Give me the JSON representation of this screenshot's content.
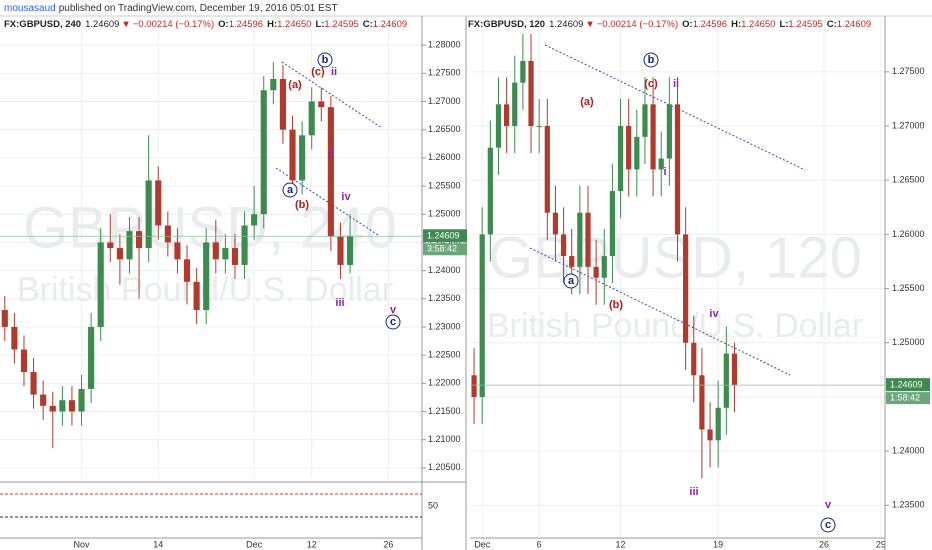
{
  "header": {
    "author": "mousasaud",
    "published": "published on TradingView.com, December 19, 2016 05:01 EST"
  },
  "chart_data": [
    {
      "type": "candlestick",
      "symbol": "FX:GBPUSD, 240",
      "last": 1.24609,
      "arrow": "▼",
      "change": "−0.00214 (−0.17%)",
      "ohlc_labels": [
        {
          "label": "O:",
          "value": 1.24596
        },
        {
          "label": "H:",
          "value": 1.2465
        },
        {
          "label": "L:",
          "value": 1.24595
        },
        {
          "label": "C:",
          "value": 1.24609
        }
      ],
      "ohlc_value_labels": [
        "1.24596",
        "1.24650",
        "1.24595",
        "1.24609"
      ],
      "last_label": "1.24609",
      "countdown": "3:58:42",
      "watermark": [
        "GBPUSD, 240",
        "British Pound/U.S. Dollar"
      ],
      "up_color": "#3d8b4f",
      "down_color": "#b03a2e",
      "categories": [
        null,
        null,
        null,
        null,
        null,
        null,
        null,
        null,
        "Nov",
        null,
        null,
        null,
        null,
        null,
        null,
        null,
        "14",
        null,
        null,
        null,
        null,
        null,
        null,
        null,
        null,
        null,
        "Dec",
        null,
        null,
        null,
        null,
        null,
        "12",
        null,
        null,
        null,
        null,
        null,
        null,
        null,
        "26",
        null,
        null,
        null
      ],
      "open": [
        1.233,
        1.23,
        1.226,
        1.222,
        1.218,
        1.216,
        1.215,
        1.217,
        1.215,
        1.219,
        1.23,
        1.245,
        1.244,
        1.242,
        1.247,
        1.244,
        1.256,
        1.248,
        1.245,
        1.242,
        1.238,
        1.233,
        1.245,
        1.242,
        1.244,
        1.241,
        1.248,
        1.25,
        1.272,
        1.274,
        1.265,
        1.256,
        1.264,
        1.27,
        1.269,
        1.246,
        1.241,
        null,
        null,
        null,
        null,
        null,
        null,
        null
      ],
      "high": [
        1.2355,
        1.2325,
        1.2285,
        1.2245,
        1.2205,
        1.2185,
        1.2195,
        1.2195,
        1.2215,
        1.2325,
        1.2475,
        1.25,
        1.2465,
        1.2495,
        1.2495,
        1.264,
        1.2585,
        1.2505,
        1.2475,
        1.2445,
        1.2405,
        1.2475,
        1.249,
        1.2465,
        1.2465,
        1.2505,
        1.255,
        1.2745,
        1.277,
        1.2765,
        1.2675,
        1.2665,
        1.2725,
        1.2725,
        1.271,
        1.2485,
        1.25,
        null,
        null,
        null,
        null,
        null,
        null,
        null
      ],
      "low": [
        1.2275,
        1.2235,
        1.2195,
        1.2155,
        1.2135,
        1.2085,
        1.2125,
        1.2125,
        1.2125,
        1.2165,
        1.2275,
        1.2415,
        1.2375,
        1.2395,
        1.235,
        1.2415,
        1.2455,
        1.2425,
        1.2395,
        1.234,
        1.2305,
        1.2305,
        1.2395,
        1.2395,
        1.2385,
        1.2385,
        1.2455,
        1.2475,
        1.2695,
        1.2625,
        1.2535,
        1.2535,
        1.2615,
        1.2665,
        1.2435,
        1.2385,
        1.2395,
        null,
        null,
        null,
        null,
        null,
        null,
        null
      ],
      "close": [
        1.23,
        1.226,
        1.222,
        1.218,
        1.216,
        1.215,
        1.217,
        1.215,
        1.219,
        1.23,
        1.245,
        1.244,
        1.242,
        1.247,
        1.244,
        1.256,
        1.248,
        1.245,
        1.242,
        1.238,
        1.233,
        1.245,
        1.242,
        1.244,
        1.241,
        1.248,
        1.25,
        1.272,
        1.274,
        1.265,
        1.256,
        1.264,
        1.27,
        1.269,
        1.246,
        1.241,
        1.24609,
        null,
        null,
        null,
        null,
        null,
        null,
        null
      ],
      "ylim": [
        1.2032,
        1.2818
      ],
      "yticks": [
        {
          "value": 1.205,
          "label": "1.20500"
        },
        {
          "value": 1.21,
          "label": "1.21000"
        },
        {
          "value": 1.215,
          "label": "1.21500"
        },
        {
          "value": 1.22,
          "label": "1.22000"
        },
        {
          "value": 1.225,
          "label": "1.22500"
        },
        {
          "value": 1.23,
          "label": "1.23000"
        },
        {
          "value": 1.235,
          "label": "1.23500"
        },
        {
          "value": 1.24,
          "label": "1.24000"
        },
        {
          "value": 1.245,
          "label": "1.24500"
        },
        {
          "value": 1.25,
          "label": "1.25000"
        },
        {
          "value": 1.255,
          "label": "1.25500"
        },
        {
          "value": 1.26,
          "label": "1.26000"
        },
        {
          "value": 1.265,
          "label": "1.26500"
        },
        {
          "value": 1.27,
          "label": "1.27000"
        },
        {
          "value": 1.275,
          "label": "1.27500"
        },
        {
          "value": 1.28,
          "label": "1.28000"
        }
      ],
      "indicator_tick": 50,
      "grid": true,
      "annotations": [
        {
          "text": "(a)",
          "color": "#b71c1c",
          "circled": false
        },
        {
          "text": "(c)",
          "color": "#b71c1c",
          "circled": false
        },
        {
          "text": "b",
          "color": "#1a237e",
          "circled": true
        },
        {
          "text": "ii",
          "color": "#8e24aa",
          "circled": false
        },
        {
          "text": "i",
          "color": "#8e24aa",
          "circled": false
        },
        {
          "text": "a",
          "color": "#1a237e",
          "circled": true
        },
        {
          "text": "(b)",
          "color": "#b71c1c",
          "circled": false
        },
        {
          "text": "iv",
          "color": "#8e24aa",
          "circled": false
        },
        {
          "text": "iii",
          "color": "#8e24aa",
          "circled": false
        },
        {
          "text": "v",
          "color": "#8e24aa",
          "circled": false
        },
        {
          "text": "c",
          "color": "#1a237e",
          "circled": true
        }
      ]
    },
    {
      "type": "candlestick",
      "symbol": "FX:GBPUSD, 120",
      "last": 1.24609,
      "arrow": "▼",
      "change": "−0.00214 (−0.17%)",
      "ohlc_labels": [
        {
          "label": "O:",
          "value": 1.24596
        },
        {
          "label": "H:",
          "value": 1.2465
        },
        {
          "label": "L:",
          "value": 1.24595
        },
        {
          "label": "C:",
          "value": 1.24609
        }
      ],
      "ohlc_value_labels": [
        "1.24596",
        "1.24650",
        "1.24595",
        "1.24609"
      ],
      "last_label": "1.24609",
      "countdown": "1:58:42",
      "watermark": [
        "GBPUSD, 120",
        "British Pound/U.S. Dollar"
      ],
      "up_color": "#3d8b4f",
      "down_color": "#b03a2e",
      "categories": [
        null,
        "Dec",
        null,
        null,
        null,
        null,
        null,
        null,
        "6",
        null,
        null,
        null,
        null,
        null,
        null,
        null,
        null,
        null,
        "12",
        null,
        null,
        null,
        null,
        null,
        null,
        null,
        null,
        null,
        null,
        null,
        "19",
        null,
        null,
        null,
        null,
        null,
        null,
        null,
        null,
        null,
        null,
        null,
        null,
        "26",
        null,
        null,
        null,
        null,
        null,
        null,
        "29"
      ],
      "open": [
        1.247,
        1.245,
        1.26,
        1.268,
        1.272,
        1.27,
        1.274,
        1.276,
        1.27,
        1.27,
        1.262,
        1.26,
        1.258,
        1.257,
        1.262,
        1.257,
        1.256,
        1.258,
        1.264,
        1.27,
        1.266,
        1.269,
        1.272,
        1.266,
        1.267,
        1.272,
        1.26,
        1.25,
        1.247,
        1.242,
        1.241,
        1.244,
        1.249,
        null,
        null,
        null,
        null,
        null,
        null,
        null,
        null,
        null,
        null,
        null,
        null,
        null,
        null,
        null,
        null,
        null,
        null
      ],
      "high": [
        1.2495,
        1.2625,
        1.2705,
        1.2745,
        1.2745,
        1.2765,
        1.2785,
        1.2785,
        1.2725,
        1.2725,
        1.2645,
        1.2625,
        1.2605,
        1.2645,
        1.2645,
        1.2595,
        1.2605,
        1.2665,
        1.2725,
        1.2725,
        1.2715,
        1.2745,
        1.2745,
        1.2695,
        1.2745,
        1.2745,
        1.2625,
        1.2525,
        1.2495,
        1.2445,
        1.2465,
        1.2515,
        1.25,
        null,
        null,
        null,
        null,
        null,
        null,
        null,
        null,
        null,
        null,
        null,
        null,
        null,
        null,
        null,
        null,
        null,
        null
      ],
      "low": [
        1.2425,
        1.2425,
        1.2575,
        1.2655,
        1.2675,
        1.2675,
        1.2715,
        1.2675,
        1.2675,
        1.2595,
        1.2575,
        1.2555,
        1.2545,
        1.2545,
        1.2545,
        1.2535,
        1.2535,
        1.2555,
        1.2615,
        1.2635,
        1.2635,
        1.2665,
        1.2635,
        1.2635,
        1.2645,
        1.2575,
        1.2475,
        1.2445,
        1.2375,
        1.2385,
        1.2385,
        1.2415,
        1.2436,
        null,
        null,
        null,
        null,
        null,
        null,
        null,
        null,
        null,
        null,
        null,
        null,
        null,
        null,
        null,
        null,
        null,
        null
      ],
      "close": [
        1.245,
        1.26,
        1.268,
        1.272,
        1.27,
        1.274,
        1.276,
        1.27,
        1.27,
        1.262,
        1.26,
        1.258,
        1.257,
        1.262,
        1.257,
        1.256,
        1.258,
        1.264,
        1.27,
        1.266,
        1.269,
        1.272,
        1.266,
        1.267,
        1.272,
        1.26,
        1.25,
        1.247,
        1.242,
        1.241,
        1.244,
        1.249,
        1.24609,
        null,
        null,
        null,
        null,
        null,
        null,
        null,
        null,
        null,
        null,
        null,
        null,
        null,
        null,
        null,
        null,
        null,
        null
      ],
      "ylim": [
        1.2318,
        1.2784
      ],
      "yticks": [
        {
          "value": 1.235,
          "label": "1.23500"
        },
        {
          "value": 1.24,
          "label": "1.24000"
        },
        {
          "value": 1.245,
          "label": "1.24500"
        },
        {
          "value": 1.25,
          "label": "1.25000"
        },
        {
          "value": 1.255,
          "label": "1.25500"
        },
        {
          "value": 1.26,
          "label": "1.26000"
        },
        {
          "value": 1.265,
          "label": "1.26500"
        },
        {
          "value": 1.27,
          "label": "1.27000"
        },
        {
          "value": 1.275,
          "label": "1.27500"
        }
      ],
      "grid": true,
      "annotations": [
        {
          "text": "b",
          "color": "#1a237e",
          "circled": true
        },
        {
          "text": "(c)",
          "color": "#b71c1c",
          "circled": false
        },
        {
          "text": "ii",
          "color": "#8e24aa",
          "circled": false
        },
        {
          "text": "(a)",
          "color": "#b71c1c",
          "circled": false
        },
        {
          "text": "i",
          "color": "#8e24aa",
          "circled": false
        },
        {
          "text": "a",
          "color": "#1a237e",
          "circled": true
        },
        {
          "text": "(b)",
          "color": "#b71c1c",
          "circled": false
        },
        {
          "text": "iv",
          "color": "#8e24aa",
          "circled": false
        },
        {
          "text": "iii",
          "color": "#8e24aa",
          "circled": false
        },
        {
          "text": "v",
          "color": "#8e24aa",
          "circled": false
        },
        {
          "text": "c",
          "color": "#1a237e",
          "circled": true
        }
      ]
    }
  ]
}
